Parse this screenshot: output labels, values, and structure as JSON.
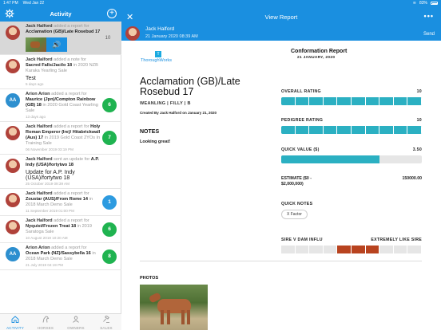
{
  "status_bar": {
    "time": "1:47 PM",
    "date": "Wed Jan 22",
    "battery": "83%"
  },
  "left": {
    "title": "Activity",
    "items": [
      {
        "who": "Jack Halford",
        "text": " added a report for ",
        "target": "Acclamation (GB)/Late Rosebud 17",
        "suffix": "",
        "note": "",
        "time": "",
        "badge": "10",
        "badge_style": "gray",
        "avatar": "photo",
        "initials": "",
        "media": true
      },
      {
        "who": "Jack Halford",
        "text": " added a note for ",
        "target": "Sacred Falls/Jacilo 18",
        "suffix": " in 2020 NZB Karaka Yearling Sale",
        "note": "Test",
        "time": "5 days ago",
        "badge": "",
        "badge_style": "",
        "avatar": "photo",
        "initials": "",
        "media": false
      },
      {
        "who": "Arion Arion",
        "text": " added a report for ",
        "target": "Maurice (Jpn)/Compton Rainbow (GB) 18",
        "suffix": " in 2020 Gold Coast Yearling Sale",
        "note": "",
        "time": "13 days ago",
        "badge": "6",
        "badge_style": "green",
        "avatar": "initials",
        "initials": "AA",
        "media": false
      },
      {
        "who": "Jack Halford",
        "text": " added a report for ",
        "target": "Holy Roman Emperor (Ire)/ Hitabrickwall (Aus) 17",
        "suffix": " in 2019 Gold Coast 2YOs In Training Sale",
        "note": "",
        "time": "06 November 2019 03:19 PM",
        "badge": "7",
        "badge_style": "green",
        "avatar": "photo",
        "initials": "",
        "media": false
      },
      {
        "who": "Jack Halford",
        "text": " sent an update for ",
        "target": "A.P. Indy (USA)/fortytwo 18",
        "suffix": "",
        "note": "Update for A.P. Indy (USA)/fortytwo 18",
        "time": "25 October 2019 09:39 AM",
        "badge": "",
        "badge_style": "",
        "avatar": "photo",
        "initials": "",
        "media": false
      },
      {
        "who": "Jack Halford",
        "text": " added a report for ",
        "target": "Zoustar (AUS)/From Rome 14",
        "suffix": " in 2018 March Demo Sale",
        "note": "",
        "time": "11 September 2019 01:00 PM",
        "badge": "1",
        "badge_style": "blue",
        "avatar": "photo",
        "initials": "",
        "media": false
      },
      {
        "who": "Jack Halford",
        "text": " added a report for ",
        "target": "Nyquist/Frozen Treat 18",
        "suffix": " in 2019 Saratoga Sale",
        "note": "",
        "time": "10 August 2019 10:20 AM",
        "badge": "6",
        "badge_style": "green",
        "avatar": "photo",
        "initials": "",
        "media": false
      },
      {
        "who": "Arion Arion",
        "text": " added a report for ",
        "target": "Ocean Park (NZ)/Sassybella 16",
        "suffix": " in 2018 March Demo Sale",
        "note": "",
        "time": "21 July 2019 04:19 PM",
        "badge": "8",
        "badge_style": "green",
        "avatar": "initials",
        "initials": "AA",
        "media": false
      }
    ],
    "tabs": [
      {
        "label": "ACTIVITY",
        "icon": "home-icon",
        "active": true
      },
      {
        "label": "HORSES",
        "icon": "horse-icon",
        "active": false
      },
      {
        "label": "OWNERS",
        "icon": "person-icon",
        "active": false
      },
      {
        "label": "SALES",
        "icon": "gavel-icon",
        "active": false
      }
    ]
  },
  "right": {
    "title": "View Report",
    "author": "Jack Halford",
    "author_date": "21 January 2020 08:39 AM",
    "send_label": "Send",
    "logo_text": "ThoroughWorks",
    "logo_mark": "T",
    "report_title": "Conformation Report",
    "report_date": "21 JANUARY, 2020",
    "horse_name": "Acclamation (GB)/Late Rosebud 17",
    "horse_sub": "WEANLING | FILLY | B",
    "created_by": "Created By Jack Halford on January 21, 2020",
    "notes_heading": "NOTES",
    "notes_text": "Looking great!",
    "overall_label": "OVERALL RATING",
    "overall_value": "10",
    "overall_score": 10,
    "pedigree_label": "PEDIGREE RATING",
    "pedigree_value": "10",
    "pedigree_score": 10,
    "quick_value_label": "QUICK VALUE ($)",
    "quick_value": "3.50",
    "quick_value_fraction": 0.7,
    "estimate_label": "ESTIMATE ($0 - $2,000,000)",
    "estimate_value": "150000.00",
    "quick_notes_label": "QUICK NOTES",
    "quick_note_chip": "X Factor",
    "sire_label": "SIRE V DAM INFLU",
    "sire_right_label": "EXTREMELY LIKE SIRE",
    "sire_active": [
      4,
      5,
      6
    ],
    "photos_heading": "PHOTOS",
    "colors": {
      "accent": "#1a8fe0",
      "rating": "#2bb0c2",
      "sire": "#b8431f",
      "green_badge": "#1fb350"
    }
  }
}
